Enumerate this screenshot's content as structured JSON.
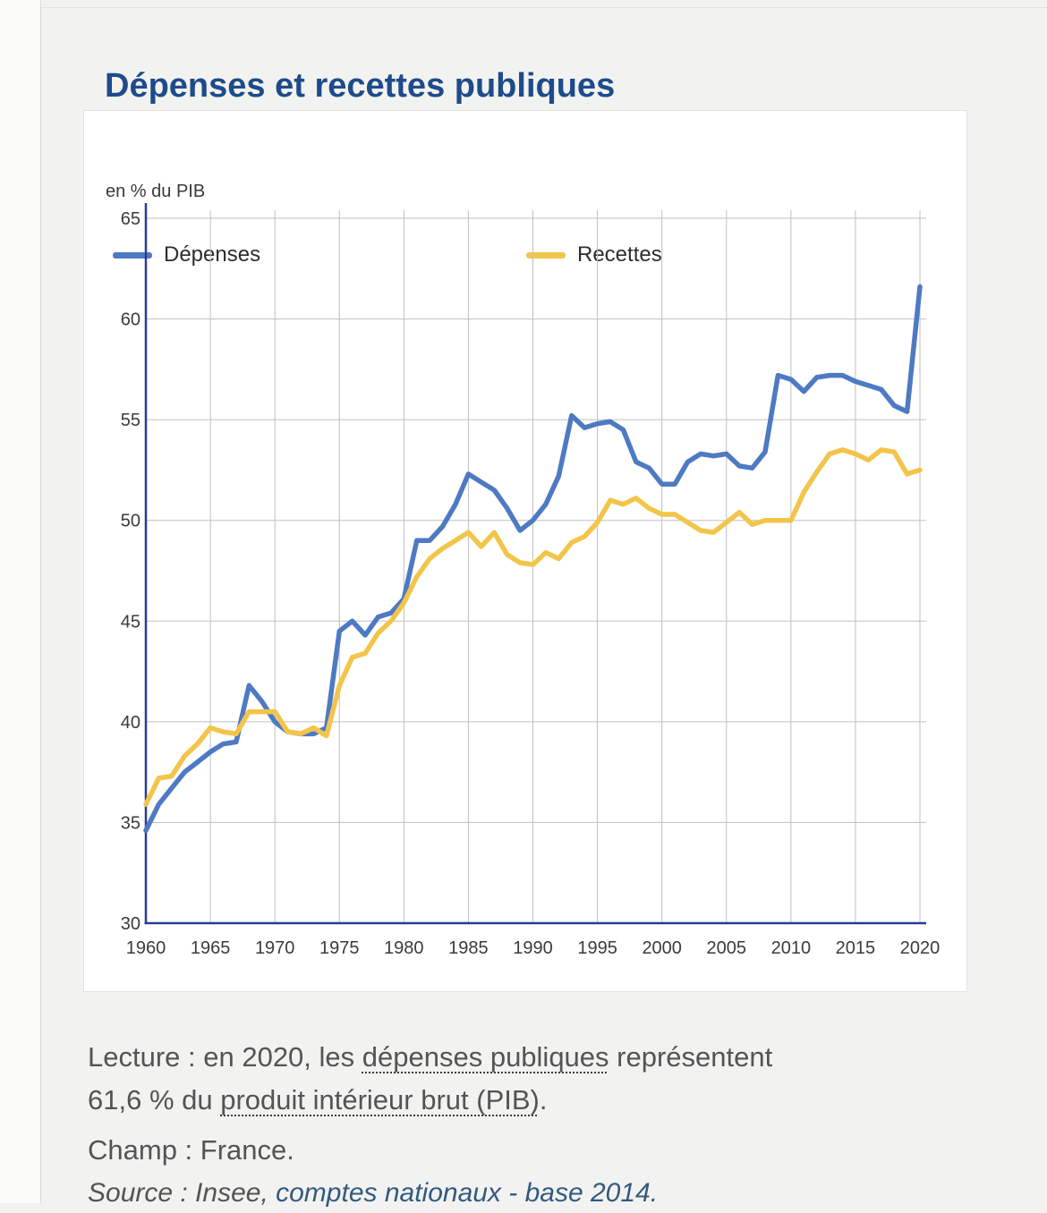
{
  "page": {
    "title": "Dépenses et recettes publiques"
  },
  "legend": {
    "depenses": "Dépenses",
    "recettes": "Recettes"
  },
  "chart_data": {
    "type": "line",
    "title": "Dépenses et recettes publiques",
    "ylabel": "en % du PIB",
    "xlabel": "",
    "grid": true,
    "legend_position": "top",
    "ylim": [
      30,
      65.4
    ],
    "x_ticks": [
      1960,
      1965,
      1970,
      1975,
      1980,
      1985,
      1990,
      1995,
      2000,
      2005,
      2010,
      2015,
      2020
    ],
    "y_ticks": [
      30,
      35,
      40,
      45,
      50,
      55,
      60,
      65
    ],
    "x": [
      1960,
      1961,
      1962,
      1963,
      1964,
      1965,
      1966,
      1967,
      1968,
      1969,
      1970,
      1971,
      1972,
      1973,
      1974,
      1975,
      1976,
      1977,
      1978,
      1979,
      1980,
      1981,
      1982,
      1983,
      1984,
      1985,
      1986,
      1987,
      1988,
      1989,
      1990,
      1991,
      1992,
      1993,
      1994,
      1995,
      1996,
      1997,
      1998,
      1999,
      2000,
      2001,
      2002,
      2003,
      2004,
      2005,
      2006,
      2007,
      2008,
      2009,
      2010,
      2011,
      2012,
      2013,
      2014,
      2015,
      2016,
      2017,
      2018,
      2019,
      2020
    ],
    "series": [
      {
        "name": "Dépenses",
        "color": "#4e79c3",
        "values": [
          34.6,
          35.9,
          36.7,
          37.5,
          38.0,
          38.5,
          38.9,
          39.0,
          41.8,
          41.0,
          40.0,
          39.5,
          39.4,
          39.4,
          39.7,
          44.5,
          45.0,
          44.3,
          45.2,
          45.4,
          46.1,
          49.0,
          49.0,
          49.7,
          50.8,
          52.3,
          51.9,
          51.5,
          50.6,
          49.5,
          50.0,
          50.8,
          52.2,
          55.2,
          54.6,
          54.8,
          54.9,
          54.5,
          52.9,
          52.6,
          51.8,
          51.8,
          52.9,
          53.3,
          53.2,
          53.3,
          52.7,
          52.6,
          53.4,
          57.2,
          57.0,
          56.4,
          57.1,
          57.2,
          57.2,
          56.9,
          56.7,
          56.5,
          55.7,
          55.4,
          61.6
        ]
      },
      {
        "name": "Recettes",
        "color": "#f2c54a",
        "values": [
          35.9,
          37.2,
          37.3,
          38.3,
          38.9,
          39.7,
          39.5,
          39.4,
          40.5,
          40.5,
          40.5,
          39.5,
          39.4,
          39.7,
          39.3,
          41.8,
          43.2,
          43.4,
          44.4,
          45.0,
          45.9,
          47.2,
          48.1,
          48.6,
          49.0,
          49.4,
          48.7,
          49.4,
          48.3,
          47.9,
          47.8,
          48.4,
          48.1,
          48.9,
          49.2,
          49.9,
          51.0,
          50.8,
          51.1,
          50.6,
          50.3,
          50.3,
          49.9,
          49.5,
          49.4,
          49.9,
          50.4,
          49.8,
          50.0,
          50.0,
          50.0,
          51.4,
          52.4,
          53.3,
          53.5,
          53.3,
          53.0,
          53.5,
          53.4,
          52.3,
          52.5
        ]
      }
    ],
    "colors": {
      "grid": "#bfbfbf",
      "axis": "#2c3a90"
    }
  },
  "footer": {
    "lecture": {
      "part1": "Lecture : en 2020, les ",
      "dotted1": "dépenses publiques",
      "part2": " représentent",
      "part3": "61,6 % du ",
      "dotted2": "produit intérieur brut (PIB)",
      "part4": "."
    },
    "champ": "Champ : France.",
    "source_prefix": "Source : Insee, ",
    "source_link": "comptes nationaux - base 2014."
  }
}
